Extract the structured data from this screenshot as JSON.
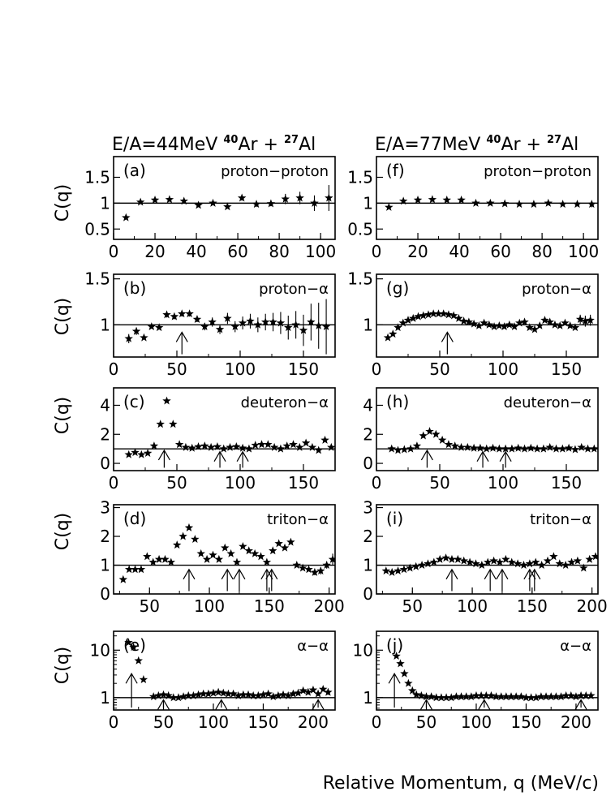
{
  "titles": {
    "left": {
      "prefix": "E/A=44MeV ",
      "sup1": "40",
      "mid": "Ar + ",
      "sup2": "27",
      "suffix": "Al"
    },
    "right": {
      "prefix": "E/A=77MeV ",
      "sup1": "40",
      "mid": "Ar + ",
      "sup2": "27",
      "suffix": "Al"
    }
  },
  "ylabel": "C(q)",
  "xlabel": "Relative Momentum, q (MeV/c)",
  "colors": {
    "marker": "#000000",
    "line": "#000000",
    "background": "#ffffff"
  },
  "chart_data": [
    {
      "type": "scatter",
      "label": "(a)",
      "name": "proton−proton",
      "col": 0,
      "row": 0,
      "xlim": [
        0,
        107
      ],
      "ylim": [
        0.3,
        1.9
      ],
      "xticks": [
        0,
        20,
        40,
        60,
        80,
        100
      ],
      "yticks": [
        0.5,
        1,
        1.5
      ],
      "ytick_labels": [
        "0.5",
        "1",
        "1.5"
      ],
      "ref_line": 1,
      "arrows": [],
      "x": [
        6,
        13,
        20,
        27,
        34,
        41,
        48,
        55,
        62,
        69,
        76,
        83,
        90,
        97,
        104
      ],
      "y": [
        0.72,
        1.02,
        1.06,
        1.07,
        1.04,
        0.96,
        1.0,
        0.93,
        1.1,
        0.98,
        0.99,
        1.08,
        1.1,
        1.0,
        1.1
      ],
      "err": [
        0,
        0,
        0,
        0,
        0,
        0,
        0,
        0,
        0.05,
        0.05,
        0.05,
        0.1,
        0.12,
        0.15,
        0.25
      ]
    },
    {
      "type": "scatter",
      "label": "(b)",
      "name": "proton−α",
      "col": 0,
      "row": 1,
      "xlim": [
        0,
        175
      ],
      "ylim": [
        0.65,
        1.55
      ],
      "xticks": [
        0,
        50,
        100,
        150
      ],
      "yticks": [
        1,
        1.5
      ],
      "ytick_labels": [
        "1",
        "1.5"
      ],
      "ref_line": 1,
      "arrows": [
        {
          "x": 54,
          "y0": 0.68,
          "y1": 0.92
        }
      ],
      "x": [
        12,
        18,
        24,
        30,
        36,
        42,
        48,
        54,
        60,
        66,
        72,
        78,
        84,
        90,
        96,
        102,
        108,
        114,
        120,
        126,
        132,
        138,
        144,
        150,
        156,
        162,
        168
      ],
      "y": [
        0.85,
        0.93,
        0.86,
        0.98,
        0.97,
        1.11,
        1.09,
        1.12,
        1.12,
        1.06,
        0.98,
        1.03,
        0.95,
        1.07,
        0.98,
        1.02,
        1.04,
        1.0,
        1.03,
        1.03,
        1.02,
        0.97,
        1.0,
        0.94,
        1.03,
        0.99,
        0.98
      ],
      "err": [
        0.05,
        0.04,
        0,
        0,
        0,
        0.03,
        0.03,
        0.03,
        0.03,
        0.03,
        0.04,
        0.05,
        0.05,
        0.06,
        0.06,
        0.07,
        0.08,
        0.08,
        0.09,
        0.1,
        0.12,
        0.13,
        0.15,
        0.17,
        0.2,
        0.25,
        0.3
      ]
    },
    {
      "type": "scatter",
      "label": "(c)",
      "name": "deuteron−α",
      "col": 0,
      "row": 2,
      "xlim": [
        0,
        175
      ],
      "ylim": [
        -0.5,
        5.2
      ],
      "xticks": [
        0,
        50,
        100,
        150
      ],
      "yticks": [
        0,
        2,
        4
      ],
      "ytick_labels": [
        "0",
        "2",
        "4"
      ],
      "ref_line": 1,
      "arrows": [
        {
          "x": 40,
          "y0": -0.3,
          "y1": 0.9
        },
        {
          "x": 84,
          "y0": -0.3,
          "y1": 0.8
        },
        {
          "x": 102,
          "y0": -0.3,
          "y1": 0.8
        }
      ],
      "x": [
        12,
        17,
        22,
        27,
        32,
        37,
        42,
        47,
        52,
        57,
        62,
        67,
        72,
        77,
        82,
        87,
        92,
        97,
        102,
        107,
        112,
        117,
        122,
        127,
        132,
        137,
        142,
        147,
        152,
        157,
        162,
        167,
        172
      ],
      "y": [
        0.6,
        0.75,
        0.6,
        0.7,
        1.2,
        2.7,
        4.3,
        2.7,
        1.3,
        1.1,
        1.05,
        1.15,
        1.2,
        1.1,
        1.15,
        1.0,
        1.1,
        1.15,
        1.05,
        1.0,
        1.25,
        1.3,
        1.3,
        1.1,
        1.0,
        1.2,
        1.3,
        1.1,
        1.4,
        1.1,
        0.9,
        1.6,
        1.1
      ],
      "err": [
        0,
        0,
        0,
        0,
        0,
        0,
        0,
        0,
        0,
        0,
        0,
        0,
        0,
        0,
        0,
        0,
        0,
        0,
        0,
        0,
        0,
        0,
        0,
        0,
        0,
        0,
        0,
        0,
        0,
        0,
        0,
        0,
        0.15
      ]
    },
    {
      "type": "scatter",
      "label": "(d)",
      "name": "triton−α",
      "col": 0,
      "row": 3,
      "xlim": [
        20,
        205
      ],
      "ylim": [
        0,
        3.1
      ],
      "xticks": [
        50,
        100,
        150,
        200
      ],
      "yticks": [
        0,
        1,
        2,
        3
      ],
      "ytick_labels": [
        "0",
        "1",
        "2",
        "3"
      ],
      "ref_line": 1,
      "arrows": [
        {
          "x": 83,
          "y0": 0.1,
          "y1": 0.85
        },
        {
          "x": 115,
          "y0": 0.1,
          "y1": 0.85
        },
        {
          "x": 125,
          "y0": 0.1,
          "y1": 0.85
        },
        {
          "x": 148,
          "y0": 0.1,
          "y1": 0.85
        },
        {
          "x": 152,
          "y0": 0.1,
          "y1": 0.85
        }
      ],
      "x": [
        28,
        33,
        38,
        43,
        48,
        53,
        58,
        63,
        68,
        73,
        78,
        83,
        88,
        93,
        98,
        103,
        108,
        113,
        118,
        123,
        128,
        133,
        138,
        143,
        148,
        153,
        158,
        163,
        168,
        173,
        178,
        183,
        188,
        193,
        198,
        203
      ],
      "y": [
        0.5,
        0.85,
        0.85,
        0.85,
        1.3,
        1.1,
        1.2,
        1.2,
        1.1,
        1.7,
        2.0,
        2.3,
        1.9,
        1.4,
        1.2,
        1.35,
        1.2,
        1.6,
        1.4,
        1.1,
        1.65,
        1.5,
        1.4,
        1.3,
        1.1,
        1.5,
        1.75,
        1.6,
        1.8,
        1.0,
        0.9,
        0.85,
        0.75,
        0.8,
        1.0,
        1.2
      ],
      "err": [
        0,
        0,
        0,
        0,
        0,
        0,
        0,
        0,
        0,
        0,
        0,
        0,
        0,
        0,
        0,
        0,
        0,
        0,
        0,
        0,
        0,
        0,
        0,
        0,
        0,
        0,
        0,
        0,
        0,
        0,
        0,
        0,
        0.1,
        0.12,
        0.12,
        0.2
      ]
    },
    {
      "type": "scatter",
      "label": "(e)",
      "name": "α−α",
      "col": 0,
      "row": 4,
      "xlim": [
        0,
        222
      ],
      "ylim": [
        0.55,
        25
      ],
      "scale": "log",
      "xticks": [
        0,
        50,
        100,
        150,
        200
      ],
      "yticks": [
        1,
        10
      ],
      "ytick_labels": [
        "1",
        "10"
      ],
      "ref_line": 1,
      "arrows": [
        {
          "x": 18,
          "y0": 0.62,
          "y1": 3.2
        },
        {
          "x": 50,
          "y0": 0.62,
          "y1": 0.9
        },
        {
          "x": 108,
          "y0": 0.62,
          "y1": 0.9
        },
        {
          "x": 205,
          "y0": 0.62,
          "y1": 0.9
        }
      ],
      "x": [
        15,
        20,
        25,
        30,
        40,
        45,
        50,
        55,
        60,
        65,
        70,
        75,
        80,
        85,
        90,
        95,
        100,
        105,
        110,
        115,
        120,
        125,
        130,
        135,
        140,
        145,
        150,
        155,
        160,
        165,
        170,
        175,
        180,
        185,
        190,
        195,
        200,
        205,
        210,
        215
      ],
      "y": [
        14.5,
        11.5,
        6.0,
        2.4,
        1.05,
        1.1,
        1.15,
        1.1,
        1.0,
        1.0,
        1.05,
        1.1,
        1.1,
        1.15,
        1.2,
        1.2,
        1.25,
        1.3,
        1.25,
        1.2,
        1.2,
        1.1,
        1.15,
        1.15,
        1.1,
        1.1,
        1.15,
        1.2,
        1.05,
        1.1,
        1.15,
        1.1,
        1.2,
        1.25,
        1.4,
        1.3,
        1.45,
        1.2,
        1.5,
        1.3
      ],
      "err": [
        0,
        0,
        0,
        0,
        0,
        0,
        0,
        0,
        0,
        0,
        0,
        0,
        0,
        0,
        0,
        0,
        0,
        0,
        0,
        0,
        0,
        0,
        0,
        0,
        0,
        0,
        0,
        0,
        0,
        0,
        0,
        0,
        0,
        0,
        0,
        0,
        0,
        0.1,
        0.15,
        0.15
      ]
    },
    {
      "type": "scatter",
      "label": "(f)",
      "name": "proton−proton",
      "col": 1,
      "row": 0,
      "xlim": [
        0,
        107
      ],
      "ylim": [
        0.3,
        1.9
      ],
      "xticks": [
        0,
        20,
        40,
        60,
        80,
        100
      ],
      "yticks": [
        0.5,
        1,
        1.5
      ],
      "ytick_labels": [
        "0.5",
        "1",
        "1.5"
      ],
      "ref_line": 1,
      "arrows": [],
      "x": [
        6,
        13,
        20,
        27,
        34,
        41,
        48,
        55,
        62,
        69,
        76,
        83,
        90,
        97,
        104
      ],
      "y": [
        0.92,
        1.04,
        1.06,
        1.07,
        1.06,
        1.06,
        1.0,
        1.0,
        0.99,
        0.98,
        0.98,
        1.0,
        0.98,
        0.98,
        0.98
      ],
      "err": [
        0,
        0,
        0,
        0,
        0,
        0,
        0,
        0,
        0,
        0,
        0,
        0,
        0.03,
        0.04,
        0.06
      ]
    },
    {
      "type": "scatter",
      "label": "(g)",
      "name": "proton−α",
      "col": 1,
      "row": 1,
      "xlim": [
        0,
        175
      ],
      "ylim": [
        0.65,
        1.55
      ],
      "xticks": [
        0,
        50,
        100,
        150
      ],
      "yticks": [
        1,
        1.5
      ],
      "ytick_labels": [
        "1",
        "1.5"
      ],
      "ref_line": 1,
      "arrows": [
        {
          "x": 56,
          "y0": 0.68,
          "y1": 0.92
        }
      ],
      "x": [
        9,
        13,
        17,
        21,
        25,
        29,
        33,
        37,
        41,
        45,
        49,
        53,
        57,
        61,
        65,
        69,
        73,
        77,
        81,
        85,
        89,
        93,
        97,
        101,
        105,
        109,
        113,
        117,
        121,
        125,
        129,
        133,
        137,
        141,
        145,
        149,
        153,
        157,
        161,
        165,
        169
      ],
      "y": [
        0.86,
        0.9,
        0.97,
        1.02,
        1.05,
        1.07,
        1.09,
        1.1,
        1.11,
        1.12,
        1.12,
        1.12,
        1.11,
        1.1,
        1.07,
        1.04,
        1.03,
        1.01,
        0.99,
        1.02,
        1.0,
        0.98,
        0.99,
        0.98,
        1.0,
        0.98,
        1.02,
        1.03,
        0.97,
        0.95,
        0.99,
        1.05,
        1.03,
        1.0,
        0.99,
        1.02,
        0.99,
        0.97,
        1.06,
        1.04,
        1.05
      ],
      "err": [
        0,
        0,
        0,
        0,
        0,
        0,
        0,
        0,
        0,
        0,
        0,
        0,
        0,
        0,
        0,
        0,
        0,
        0,
        0,
        0,
        0,
        0,
        0,
        0,
        0,
        0,
        0,
        0,
        0,
        0,
        0,
        0,
        0,
        0,
        0,
        0,
        0,
        0,
        0.05,
        0.06,
        0.06
      ]
    },
    {
      "type": "scatter",
      "label": "(h)",
      "name": "deuteron−α",
      "col": 1,
      "row": 2,
      "xlim": [
        0,
        175
      ],
      "ylim": [
        -0.5,
        5.2
      ],
      "xticks": [
        0,
        50,
        100,
        150
      ],
      "yticks": [
        0,
        2,
        4
      ],
      "ytick_labels": [
        "0",
        "2",
        "4"
      ],
      "ref_line": 1,
      "arrows": [
        {
          "x": 40,
          "y0": -0.3,
          "y1": 0.9
        },
        {
          "x": 84,
          "y0": -0.3,
          "y1": 0.8
        },
        {
          "x": 102,
          "y0": -0.3,
          "y1": 0.8
        }
      ],
      "x": [
        12,
        17,
        22,
        27,
        32,
        37,
        42,
        47,
        52,
        57,
        62,
        67,
        72,
        77,
        82,
        87,
        92,
        97,
        102,
        107,
        112,
        117,
        122,
        127,
        132,
        137,
        142,
        147,
        152,
        157,
        162,
        167,
        172
      ],
      "y": [
        1.0,
        0.9,
        0.95,
        1.0,
        1.2,
        1.9,
        2.2,
        2.0,
        1.6,
        1.3,
        1.2,
        1.1,
        1.1,
        1.05,
        1.05,
        1.0,
        1.05,
        1.0,
        1.0,
        1.0,
        1.05,
        1.0,
        1.05,
        1.0,
        1.0,
        1.1,
        1.0,
        1.0,
        1.05,
        0.95,
        1.1,
        1.0,
        1.0
      ],
      "err": [
        0,
        0,
        0,
        0,
        0,
        0,
        0,
        0,
        0,
        0,
        0,
        0,
        0,
        0,
        0,
        0,
        0,
        0,
        0,
        0,
        0,
        0,
        0,
        0,
        0,
        0,
        0,
        0,
        0,
        0,
        0,
        0,
        0
      ]
    },
    {
      "type": "scatter",
      "label": "(i)",
      "name": "triton−α",
      "col": 1,
      "row": 3,
      "xlim": [
        20,
        205
      ],
      "ylim": [
        0,
        3.1
      ],
      "xticks": [
        50,
        100,
        150,
        200
      ],
      "yticks": [
        0,
        1,
        2,
        3
      ],
      "ytick_labels": [
        "0",
        "1",
        "2",
        "3"
      ],
      "ref_line": 1,
      "arrows": [
        {
          "x": 83,
          "y0": 0.1,
          "y1": 0.85
        },
        {
          "x": 115,
          "y0": 0.1,
          "y1": 0.85
        },
        {
          "x": 125,
          "y0": 0.1,
          "y1": 0.85
        },
        {
          "x": 148,
          "y0": 0.1,
          "y1": 0.85
        },
        {
          "x": 152,
          "y0": 0.1,
          "y1": 0.85
        }
      ],
      "x": [
        28,
        33,
        38,
        43,
        48,
        53,
        58,
        63,
        68,
        73,
        78,
        83,
        88,
        93,
        98,
        103,
        108,
        113,
        118,
        123,
        128,
        133,
        138,
        143,
        148,
        153,
        158,
        163,
        168,
        173,
        178,
        183,
        188,
        193,
        198,
        203
      ],
      "y": [
        0.8,
        0.75,
        0.8,
        0.85,
        0.9,
        0.95,
        1.0,
        1.05,
        1.1,
        1.2,
        1.25,
        1.2,
        1.2,
        1.15,
        1.1,
        1.05,
        1.0,
        1.1,
        1.15,
        1.1,
        1.2,
        1.1,
        1.05,
        1.0,
        1.05,
        1.1,
        1.0,
        1.15,
        1.3,
        1.05,
        1.0,
        1.1,
        1.15,
        0.9,
        1.2,
        1.3
      ],
      "err": [
        0,
        0,
        0,
        0,
        0,
        0,
        0,
        0,
        0,
        0,
        0,
        0,
        0,
        0,
        0,
        0,
        0,
        0,
        0,
        0,
        0,
        0,
        0,
        0,
        0,
        0,
        0,
        0,
        0,
        0,
        0,
        0,
        0,
        0,
        0,
        0
      ]
    },
    {
      "type": "scatter",
      "label": "(j)",
      "name": "α−α",
      "col": 1,
      "row": 4,
      "xlim": [
        0,
        222
      ],
      "ylim": [
        0.55,
        25
      ],
      "scale": "log",
      "xticks": [
        0,
        50,
        100,
        150,
        200
      ],
      "yticks": [
        1,
        10
      ],
      "ytick_labels": [
        "1",
        "10"
      ],
      "ref_line": 1,
      "arrows": [
        {
          "x": 18,
          "y0": 0.62,
          "y1": 3.2
        },
        {
          "x": 50,
          "y0": 0.62,
          "y1": 0.9
        },
        {
          "x": 108,
          "y0": 0.62,
          "y1": 0.9
        },
        {
          "x": 205,
          "y0": 0.62,
          "y1": 0.9
        }
      ],
      "x": [
        20,
        24,
        28,
        32,
        36,
        40,
        45,
        50,
        55,
        60,
        65,
        70,
        75,
        80,
        85,
        90,
        95,
        100,
        105,
        110,
        115,
        120,
        125,
        130,
        135,
        140,
        145,
        150,
        155,
        160,
        165,
        170,
        175,
        180,
        185,
        190,
        195,
        200,
        205,
        210,
        215
      ],
      "y": [
        7.5,
        5.2,
        3.2,
        2.0,
        1.4,
        1.15,
        1.1,
        1.05,
        1.05,
        1.0,
        1.0,
        1.0,
        1.0,
        1.05,
        1.05,
        1.05,
        1.05,
        1.1,
        1.1,
        1.1,
        1.1,
        1.05,
        1.05,
        1.05,
        1.05,
        1.05,
        1.05,
        1.0,
        1.0,
        1.0,
        1.05,
        1.05,
        1.05,
        1.05,
        1.05,
        1.1,
        1.1,
        1.05,
        1.1,
        1.1,
        1.1
      ],
      "err": [
        0,
        0,
        0,
        0,
        0,
        0,
        0,
        0,
        0,
        0,
        0,
        0,
        0,
        0,
        0,
        0,
        0,
        0,
        0,
        0,
        0,
        0,
        0,
        0,
        0,
        0,
        0,
        0,
        0,
        0,
        0,
        0,
        0,
        0,
        0,
        0,
        0,
        0,
        0,
        0,
        0
      ]
    }
  ]
}
